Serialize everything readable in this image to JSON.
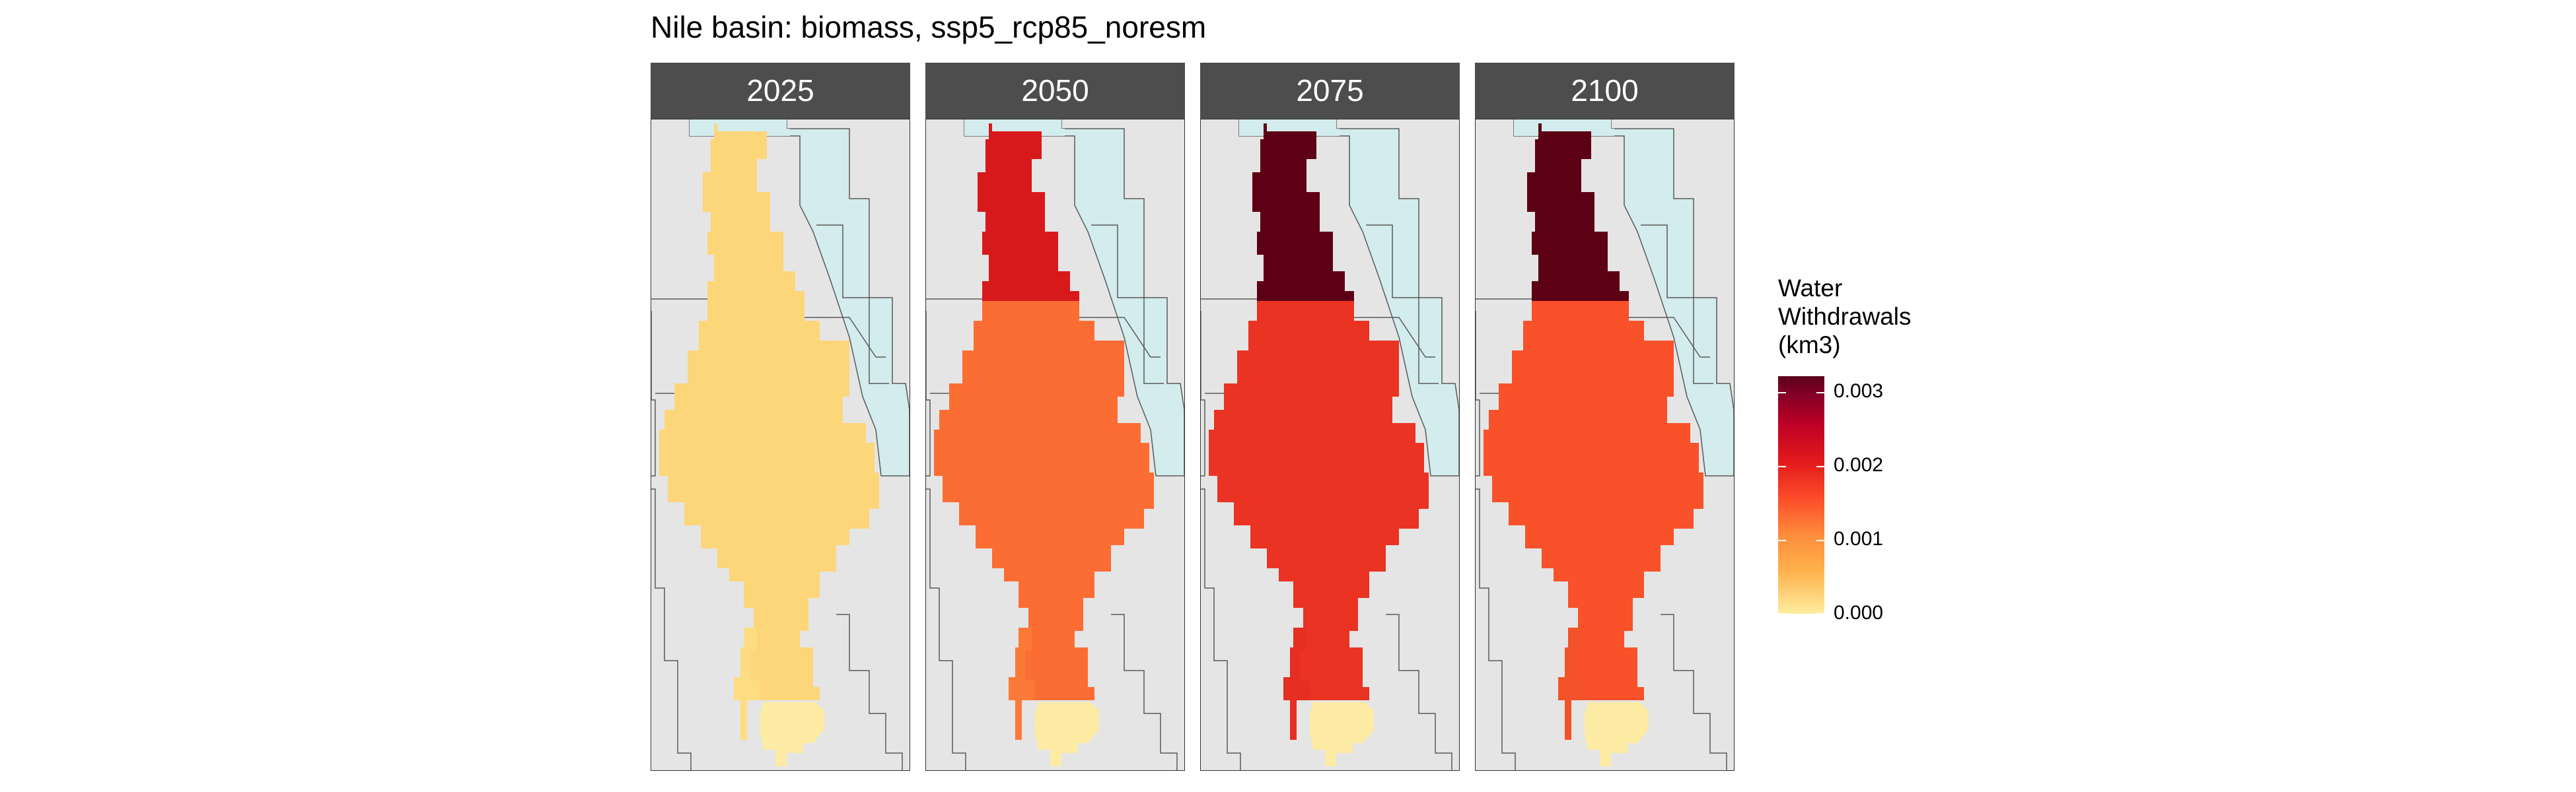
{
  "title": "Nile basin: biomass, ssp5_rcp85_noresm",
  "facets": [
    {
      "year": "2025",
      "main_color": "#fdd67a",
      "north_color": "#fdd67a",
      "south_color": "#fddc82"
    },
    {
      "year": "2050",
      "main_color": "#fc6d33",
      "north_color": "#d7191c",
      "south_color": "#fc7a38"
    },
    {
      "year": "2075",
      "main_color": "#ea3323",
      "north_color": "#5e0015",
      "south_color": "#e62e22"
    },
    {
      "year": "2100",
      "main_color": "#f9512a",
      "north_color": "#5c0014",
      "south_color": "#f45229"
    }
  ],
  "colors": {
    "panel_background": "#e5e5e5",
    "water": "#d3eced",
    "lake": "#fdeba4",
    "border_line": "#5a5a5a"
  },
  "legend": {
    "title_lines": [
      "Water",
      "Withdrawals",
      "(km3)"
    ],
    "ticks": [
      "0.003",
      "0.002",
      "0.001",
      "0.000"
    ],
    "tick_values": [
      0.003,
      0.002,
      0.001,
      0.0
    ],
    "range": [
      0.0,
      0.0032
    ]
  }
}
